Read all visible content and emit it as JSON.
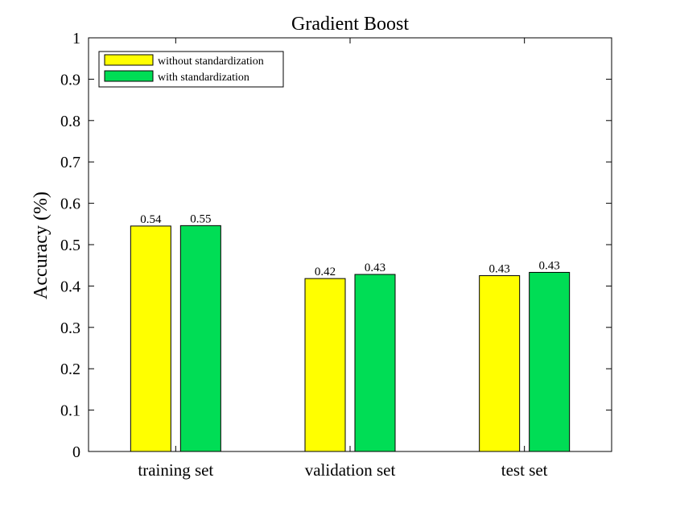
{
  "chart_data": {
    "type": "bar",
    "title": "Gradient Boost",
    "ylabel": "Accuracy (%)",
    "xlabel": "",
    "categories": [
      "training set",
      "validation set",
      "test set"
    ],
    "ylim": [
      0,
      1
    ],
    "yticks": [
      "0",
      "0.1",
      "0.2",
      "0.3",
      "0.4",
      "0.5",
      "0.6",
      "0.7",
      "0.8",
      "0.9",
      "1"
    ],
    "grid": false,
    "legend_position": "top-left",
    "series": [
      {
        "name": "without standardization",
        "color": "#ffff00",
        "values": [
          0.545,
          0.418,
          0.425
        ],
        "labels": [
          "0.54",
          "0.42",
          "0.43"
        ]
      },
      {
        "name": "with standardization",
        "color": "#00dd55",
        "values": [
          0.546,
          0.428,
          0.433
        ],
        "labels": [
          "0.55",
          "0.43",
          "0.43"
        ]
      }
    ]
  }
}
